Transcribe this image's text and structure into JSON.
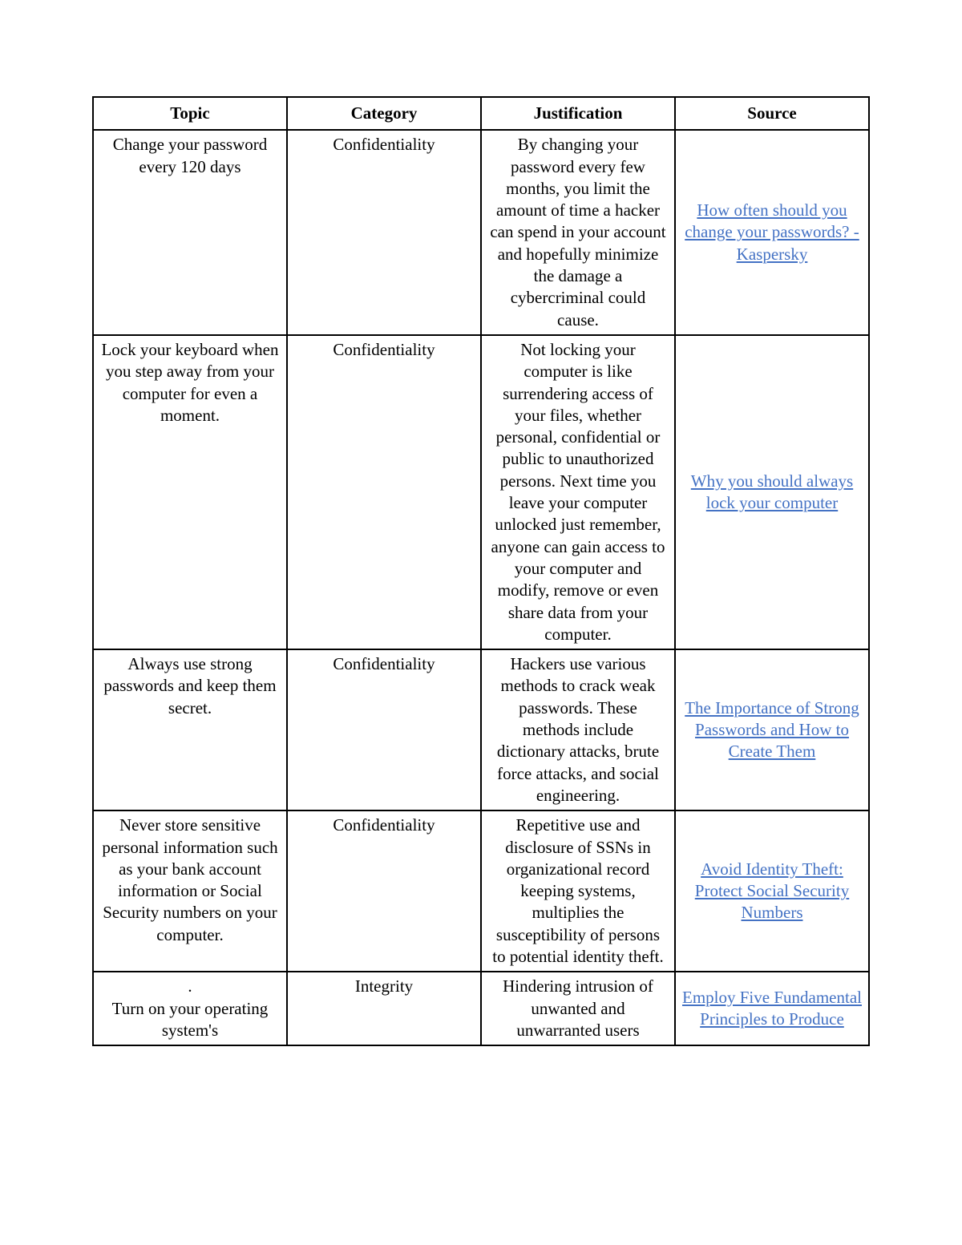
{
  "table": {
    "headers": {
      "topic": "Topic",
      "category": "Category",
      "justification": "Justification",
      "source": "Source"
    },
    "rows": [
      {
        "topic": "Change your password every 120 days",
        "category": "Confidentiality",
        "justification": "By changing your password every few months, you limit the amount of time a hacker can spend in your account and hopefully minimize the damage a cybercriminal could cause.",
        "source": "How often should you change your passwords? - Kaspersky"
      },
      {
        "topic": "Lock your keyboard when you step away from your computer for even a moment.",
        "category": "Confidentiality",
        "justification": "Not locking your computer is like surrendering access of your files, whether personal, confidential or public to unauthorized persons. Next time you leave your computer unlocked just remember, anyone can gain access to your computer and modify, remove or even share data from your computer.",
        "source": "Why you should always lock your computer"
      },
      {
        "topic": "Always use strong passwords and keep them secret.",
        "category": "Confidentiality",
        "justification": "Hackers use various methods to crack weak passwords. These methods include dictionary attacks, brute force attacks, and social engineering.",
        "source": "The Importance of Strong Passwords and How to Create Them"
      },
      {
        "topic": "Never store sensitive personal information such as your bank account information or Social Security numbers on your computer.",
        "category": "Confidentiality",
        "justification": "Repetitive use and disclosure of SSNs in organizational record keeping systems, multiplies the susceptibility of persons to potential identity theft.",
        "source": "Avoid Identity Theft: Protect Social Security Numbers"
      },
      {
        "topic": ".\nTurn on your operating system's",
        "category": "Integrity",
        "justification": "Hindering intrusion of unwanted and unwarranted users",
        "source": "Employ Five Fundamental Principles to Produce"
      }
    ],
    "link_color": "#4472c4",
    "border_color": "#000000",
    "text_color": "#000000",
    "background_color": "#ffffff",
    "header_font_weight": "bold",
    "font_family": "Garamond, Times New Roman, serif",
    "font_size": 21
  }
}
